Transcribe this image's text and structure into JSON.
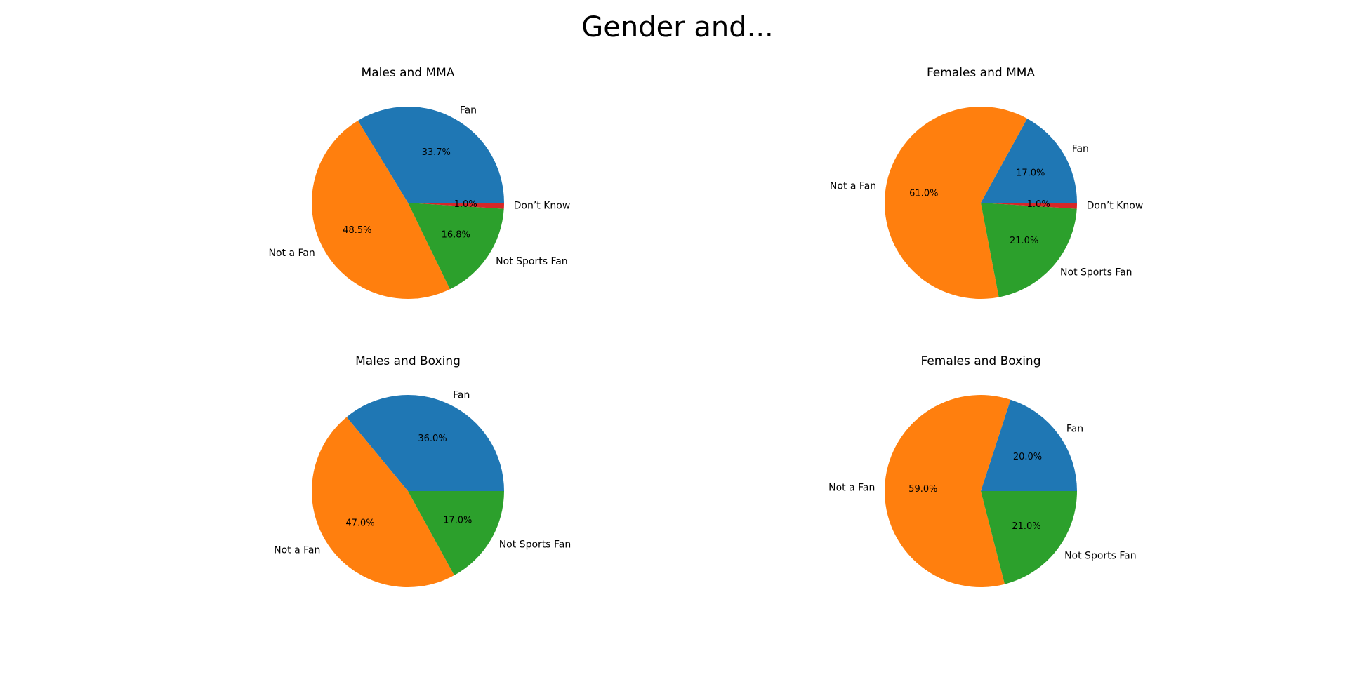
{
  "figure": {
    "suptitle": "Gender and..."
  },
  "chart_data": [
    {
      "type": "pie",
      "title": "Males and MMA",
      "categories": [
        "Fan",
        "Not a Fan",
        "Not Sports Fan",
        "Don’t Know"
      ],
      "values": [
        33.7,
        48.5,
        16.8,
        1.0
      ],
      "value_labels": [
        "33.7%",
        "48.5%",
        "16.8%",
        "1.0%"
      ],
      "colors": [
        "#1f77b4",
        "#ff7f0e",
        "#2ca02c",
        "#d62728"
      ],
      "start_angle_deg": 0,
      "direction": "counterclockwise"
    },
    {
      "type": "pie",
      "title": "Females and MMA",
      "categories": [
        "Fan",
        "Not a Fan",
        "Not Sports Fan",
        "Don’t Know"
      ],
      "values": [
        17.0,
        61.0,
        21.0,
        1.0
      ],
      "value_labels": [
        "17.0%",
        "61.0%",
        "21.0%",
        "1.0%"
      ],
      "colors": [
        "#1f77b4",
        "#ff7f0e",
        "#2ca02c",
        "#d62728"
      ],
      "start_angle_deg": 0,
      "direction": "counterclockwise"
    },
    {
      "type": "pie",
      "title": "Males and Boxing",
      "categories": [
        "Fan",
        "Not a Fan",
        "Not Sports Fan"
      ],
      "values": [
        36.0,
        47.0,
        17.0
      ],
      "value_labels": [
        "36.0%",
        "47.0%",
        "17.0%"
      ],
      "colors": [
        "#1f77b4",
        "#ff7f0e",
        "#2ca02c"
      ],
      "start_angle_deg": 0,
      "direction": "counterclockwise"
    },
    {
      "type": "pie",
      "title": "Females and Boxing",
      "categories": [
        "Fan",
        "Not a Fan",
        "Not Sports Fan"
      ],
      "values": [
        20.0,
        59.0,
        21.0
      ],
      "value_labels": [
        "20.0%",
        "59.0%",
        "21.0%"
      ],
      "colors": [
        "#1f77b4",
        "#ff7f0e",
        "#2ca02c"
      ],
      "start_angle_deg": 0,
      "direction": "counterclockwise"
    }
  ]
}
